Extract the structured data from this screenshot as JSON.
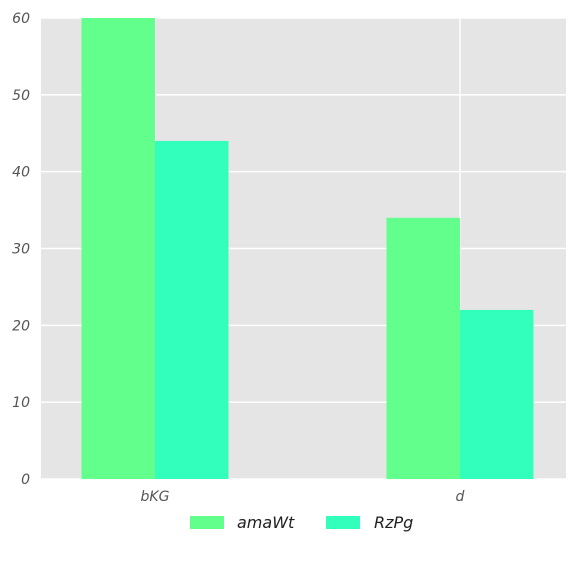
{
  "chart_data": {
    "type": "bar",
    "categories": [
      "bKG",
      "d"
    ],
    "series": [
      {
        "name": "amaWt",
        "values": [
          60,
          34
        ],
        "color": "#62ff8c"
      },
      {
        "name": "RzPg",
        "values": [
          44,
          22
        ],
        "color": "#33ffbd"
      }
    ],
    "title": "",
    "xlabel": "",
    "ylabel": "",
    "ylim": [
      0,
      60
    ],
    "yticks": [
      0,
      10,
      20,
      30,
      40,
      50,
      60
    ],
    "grid": true,
    "legend_position": "bottom",
    "background_color": "#e5e5e5",
    "grid_color": "#ffffff"
  }
}
